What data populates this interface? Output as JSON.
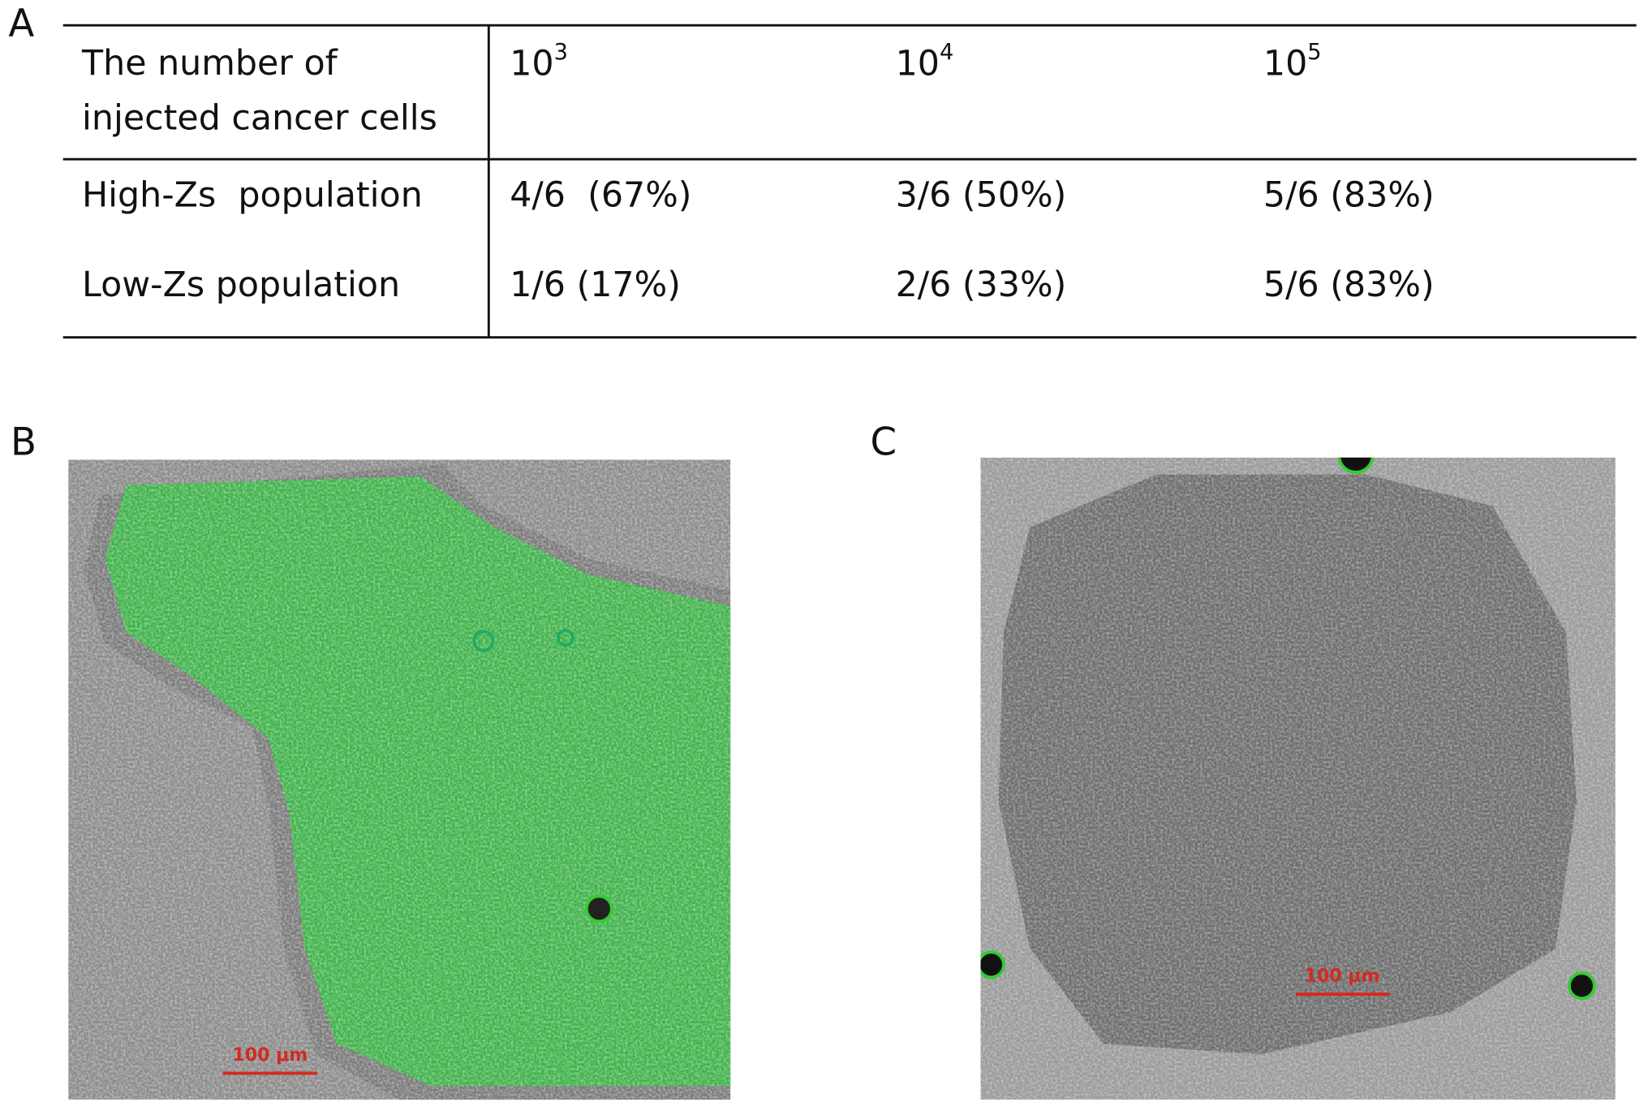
{
  "panels": {
    "a": {
      "label": "A",
      "table": {
        "header": {
          "row_label_lines": [
            "The number of",
            "injected cancer cells"
          ],
          "columns": [
            {
              "base": "10",
              "exponent": "3"
            },
            {
              "base": "10",
              "exponent": "4"
            },
            {
              "base": "10",
              "exponent": "5"
            }
          ]
        },
        "rows": [
          [
            "High-Zs  population",
            "4/6  (67%)",
            "3/6 (50%)",
            "5/6 (83%)"
          ],
          [
            "Low-Zs population",
            "1/6 (17%)",
            "2/6 (33%)",
            "5/6 (83%)"
          ]
        ]
      }
    },
    "b": {
      "label": "B",
      "scale_bar": "100 μm"
    },
    "c": {
      "label": "C",
      "scale_bar": "100 μm"
    }
  }
}
